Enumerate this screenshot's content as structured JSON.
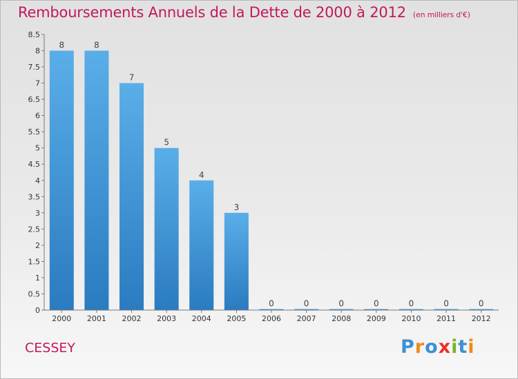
{
  "header": {
    "title": "Remboursements Annuels de la Dette de 2000 à 2012",
    "unit": "(en milliers d'€)"
  },
  "footer": {
    "commune": "CESSEY",
    "logo": "Proxiti"
  },
  "colors": {
    "title": "#c2185b",
    "bar_light": "#5aaee8",
    "bar_dark": "#2a7bc0",
    "logo": [
      "#3d8fd4",
      "#f08a1c",
      "#3d8fd4",
      "#e8332a",
      "#7cb32a",
      "#3d8fd4",
      "#f08a1c"
    ]
  },
  "chart_data": {
    "type": "bar",
    "categories": [
      "2000",
      "2001",
      "2002",
      "2003",
      "2004",
      "2005",
      "2006",
      "2007",
      "2008",
      "2009",
      "2010",
      "2011",
      "2012"
    ],
    "values": [
      8,
      8,
      7,
      5,
      4,
      3,
      0,
      0,
      0,
      0,
      0,
      0,
      0
    ],
    "data_labels": [
      "8",
      "8",
      "7",
      "5",
      "4",
      "3",
      "0",
      "0",
      "0",
      "0",
      "0",
      "0",
      "0"
    ],
    "ylim": [
      0,
      8.5
    ],
    "yticks": [
      "0",
      "0.5",
      "1",
      "1.5",
      "2",
      "2.5",
      "3",
      "3.5",
      "4",
      "4.5",
      "5",
      "5.5",
      "6",
      "6.5",
      "7",
      "7.5",
      "8",
      "8.5"
    ],
    "grid": false,
    "legend": "none"
  }
}
